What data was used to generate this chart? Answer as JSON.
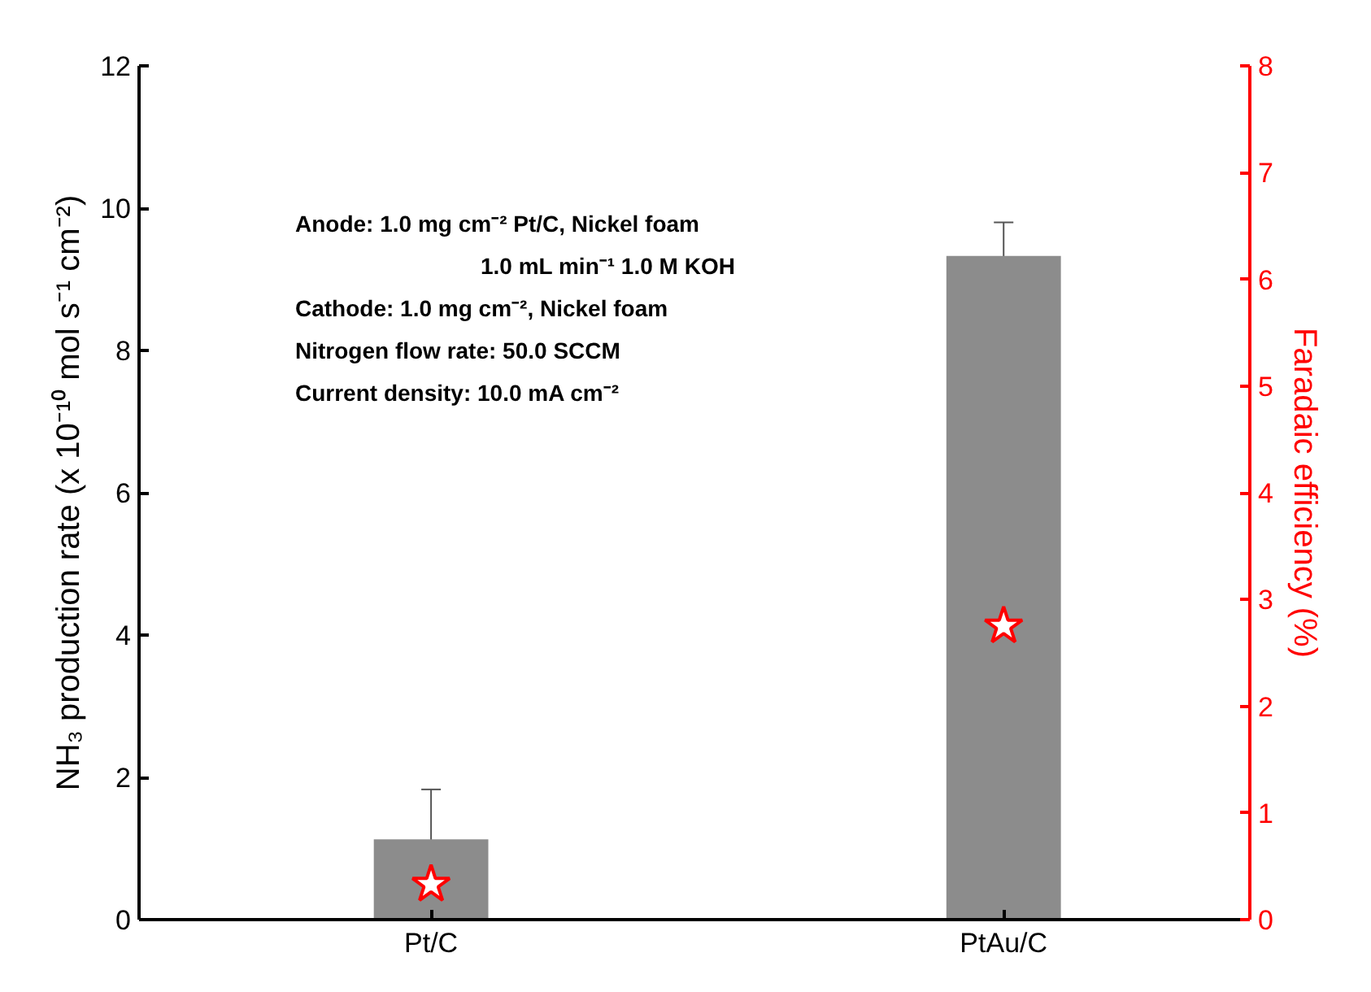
{
  "chart_data": {
    "type": "bar",
    "categories": [
      "Pt/C",
      "PtAu/C"
    ],
    "ylabel": "NH₃ production rate (x 10⁻¹⁰ mol s⁻¹ cm⁻²)",
    "y2label": "Faradaic efficiency (%)",
    "ylim": [
      0,
      12
    ],
    "yticks": [
      0,
      2,
      4,
      6,
      8,
      10,
      12
    ],
    "y2lim": [
      0,
      8
    ],
    "y2ticks": [
      0,
      1,
      2,
      3,
      4,
      5,
      6,
      7,
      8
    ],
    "series": [
      {
        "color": "#8c8c8c",
        "values": [
          1.13,
          9.33
        ],
        "errors": [
          0.7,
          0.47
        ]
      },
      {
        "type": "scatter",
        "axis": "y2",
        "marker": "star",
        "color": "#ff0000",
        "values": [
          0.33,
          2.75
        ]
      }
    ],
    "annotations": [
      "Anode: 1.0 mg cm⁻² Pt/C, Nickel foam",
      "1.0 mL min⁻¹ 1.0 M KOH",
      "Cathode: 1.0 mg cm⁻², Nickel foam",
      "Nitrogen flow rate: 50.0 SCCM",
      "Current density: 10.0 mA cm⁻²"
    ],
    "grid": false
  }
}
